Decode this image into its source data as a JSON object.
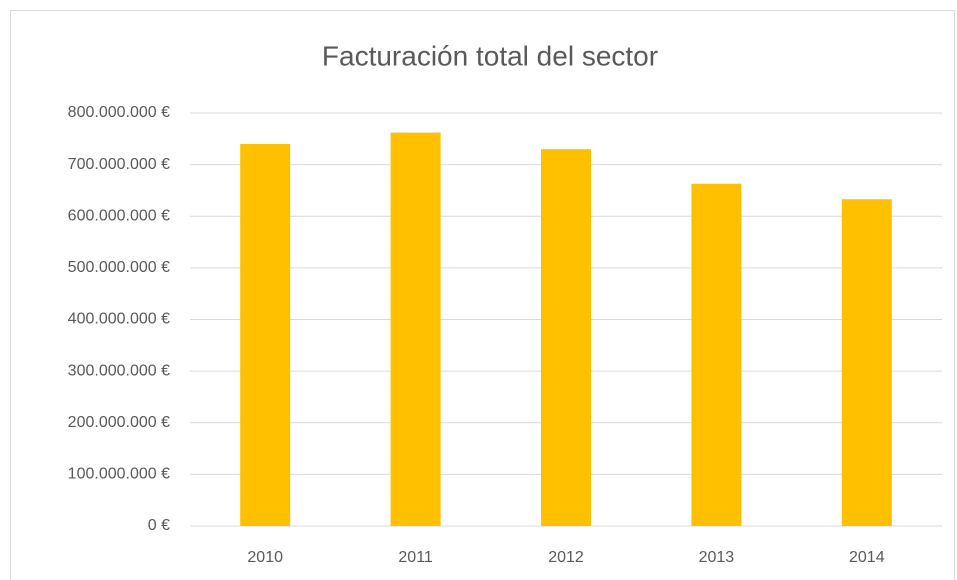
{
  "chart_data": {
    "type": "bar",
    "title": "Facturación total del sector",
    "categories": [
      "2010",
      "2011",
      "2012",
      "2013",
      "2014"
    ],
    "values": [
      740000000,
      762000000,
      730000000,
      663000000,
      633000000
    ],
    "color": "#ffc000",
    "ylim": [
      0,
      800000000
    ],
    "yticks": [
      {
        "value": 0,
        "label": "0 €"
      },
      {
        "value": 100000000,
        "label": "100.000.000 €"
      },
      {
        "value": 200000000,
        "label": "200.000.000 €"
      },
      {
        "value": 300000000,
        "label": "300.000.000 €"
      },
      {
        "value": 400000000,
        "label": "400.000.000 €"
      },
      {
        "value": 500000000,
        "label": "500.000.000 €"
      },
      {
        "value": 600000000,
        "label": "600.000.000 €"
      },
      {
        "value": 700000000,
        "label": "700.000.000 €"
      },
      {
        "value": 800000000,
        "label": "800.000.000 €"
      }
    ],
    "grid": true
  }
}
